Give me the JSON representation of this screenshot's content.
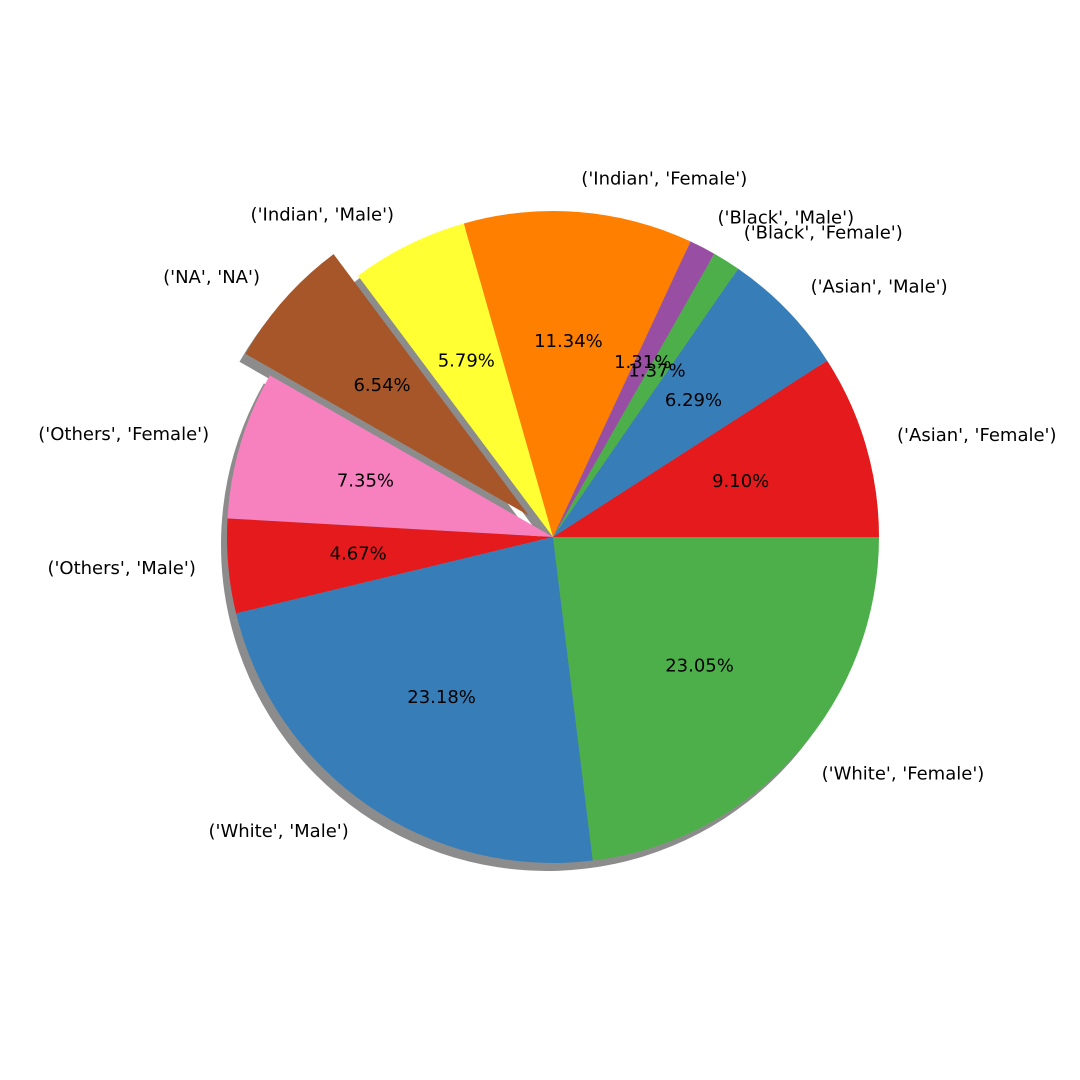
{
  "chart_data": {
    "type": "pie",
    "categories": [
      "('Asian', 'Female')",
      "('Asian', 'Male')",
      "('Black', 'Female')",
      "('Black', 'Male')",
      "('Indian', 'Female')",
      "('Indian', 'Male')",
      "('NA', 'NA')",
      "('Others', 'Female')",
      "('Others', 'Male')",
      "('White', 'Male')",
      "('White', 'Female')"
    ],
    "values": [
      9.1,
      6.29,
      1.37,
      1.31,
      11.34,
      5.79,
      6.54,
      7.35,
      4.67,
      23.18,
      23.05
    ],
    "percent_labels": [
      "9.10%",
      "6.29%",
      "1.37%",
      "1.31%",
      "11.34%",
      "5.79%",
      "6.54%",
      "7.35%",
      "4.67%",
      "23.18%",
      "23.05%"
    ],
    "colors": [
      "#e41a1c",
      "#377eb8",
      "#4daf4a",
      "#984ea3",
      "#ff7f00",
      "#ffff33",
      "#a65628",
      "#f781bf",
      "#e41a1c",
      "#377eb8",
      "#4daf4a"
    ],
    "exploded": [
      "('NA', 'NA')"
    ],
    "shadow": true,
    "start_angle_deg": 0,
    "direction": "counterclockwise"
  }
}
